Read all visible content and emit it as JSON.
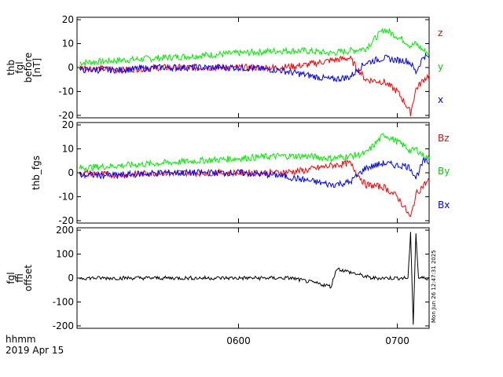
{
  "x_axis": {
    "label_line1": "hhmm",
    "label_line2": "2019 Apr 15",
    "range_hhmm": [
      "04:59",
      "07:12"
    ],
    "ticks": [
      {
        "value": "06:00",
        "label": "0600"
      },
      {
        "value": "07:00",
        "label": "0700"
      }
    ]
  },
  "timestamp_text": "Mon Jun 26 12:47:31 2025",
  "colors": {
    "red": "#ff0000",
    "green": "#00ee00",
    "blue": "#0000ff",
    "black": "#000000"
  },
  "chart_data": [
    {
      "type": "line",
      "ylabel": [
        "thb",
        "fgl",
        "before",
        "[nT]"
      ],
      "ylim": [
        -21,
        21
      ],
      "yticks": [
        -20,
        -10,
        0,
        10,
        20
      ],
      "grid": false,
      "legend": "right",
      "series": [
        {
          "name": "x",
          "color": "#0000ff",
          "x": [
            "05:00",
            "05:15",
            "05:30",
            "05:45",
            "06:00",
            "06:15",
            "06:25",
            "06:35",
            "06:42",
            "06:48",
            "06:55",
            "07:00",
            "07:03",
            "07:05",
            "07:07",
            "07:10",
            "07:12"
          ],
          "y": [
            -1,
            -1,
            0,
            0,
            0,
            -1,
            -3,
            -5,
            -4,
            2,
            4,
            3,
            3,
            2,
            -2,
            5,
            4
          ]
        },
        {
          "name": "y",
          "color": "#00ee00",
          "x": [
            "05:00",
            "05:15",
            "05:30",
            "05:45",
            "06:00",
            "06:15",
            "06:25",
            "06:35",
            "06:42",
            "06:48",
            "06:55",
            "07:00",
            "07:03",
            "07:05",
            "07:07",
            "07:10",
            "07:12"
          ],
          "y": [
            2,
            3,
            4,
            5,
            6,
            7,
            7,
            6,
            7,
            8,
            16,
            13,
            11,
            9,
            10,
            7,
            6
          ]
        },
        {
          "name": "z",
          "color": "#ff0000",
          "x": [
            "05:00",
            "05:15",
            "05:30",
            "05:45",
            "06:00",
            "06:15",
            "06:25",
            "06:35",
            "06:42",
            "06:48",
            "06:55",
            "07:00",
            "07:03",
            "07:05",
            "07:07",
            "07:10",
            "07:12"
          ],
          "y": [
            0,
            -1,
            0,
            0,
            0,
            0,
            1,
            3,
            4,
            -5,
            -6,
            -10,
            -15,
            -19,
            -9,
            -5,
            -3
          ]
        }
      ]
    },
    {
      "type": "line",
      "ylabel": [
        "thb_fgs"
      ],
      "ylim": [
        -21,
        21
      ],
      "yticks": [
        -20,
        -10,
        0,
        10,
        20
      ],
      "grid": false,
      "legend": "right",
      "series": [
        {
          "name": "Bx",
          "color": "#0000ff",
          "x": [
            "05:00",
            "05:15",
            "05:30",
            "05:45",
            "06:00",
            "06:15",
            "06:25",
            "06:35",
            "06:42",
            "06:48",
            "06:55",
            "07:00",
            "07:03",
            "07:05",
            "07:07",
            "07:10",
            "07:12"
          ],
          "y": [
            -1,
            -1,
            0,
            0,
            0,
            -1,
            -3,
            -5,
            -4,
            2,
            4,
            3,
            3,
            2,
            -2,
            5,
            4
          ]
        },
        {
          "name": "By",
          "color": "#00ee00",
          "x": [
            "05:00",
            "05:15",
            "05:30",
            "05:45",
            "06:00",
            "06:15",
            "06:25",
            "06:35",
            "06:42",
            "06:48",
            "06:55",
            "07:00",
            "07:03",
            "07:05",
            "07:07",
            "07:10",
            "07:12"
          ],
          "y": [
            2,
            3,
            4,
            5,
            6,
            7,
            7,
            6,
            7,
            8,
            16,
            13,
            11,
            9,
            10,
            7,
            6
          ]
        },
        {
          "name": "Bz",
          "color": "#ff0000",
          "x": [
            "05:00",
            "05:15",
            "05:30",
            "05:45",
            "06:00",
            "06:15",
            "06:25",
            "06:35",
            "06:42",
            "06:48",
            "06:55",
            "07:00",
            "07:03",
            "07:05",
            "07:07",
            "07:10",
            "07:12"
          ],
          "y": [
            0,
            -1,
            0,
            0,
            0,
            0,
            1,
            3,
            4,
            -5,
            -6,
            -10,
            -15,
            -19,
            -9,
            -5,
            -3
          ]
        }
      ]
    },
    {
      "type": "line",
      "ylabel": [
        "fgl",
        "ffi",
        "offset"
      ],
      "ylim": [
        -210,
        210
      ],
      "yticks": [
        -200,
        -100,
        0,
        100,
        200
      ],
      "grid": false,
      "series": [
        {
          "color": "#000000",
          "x": [
            "05:00",
            "05:30",
            "06:00",
            "06:20",
            "06:35",
            "06:37",
            "06:50",
            "07:04",
            "07:05",
            "07:06",
            "07:07",
            "07:08",
            "07:12"
          ],
          "y": [
            0,
            0,
            0,
            0,
            -35,
            40,
            0,
            0,
            185,
            -190,
            185,
            0,
            0
          ]
        }
      ]
    }
  ]
}
